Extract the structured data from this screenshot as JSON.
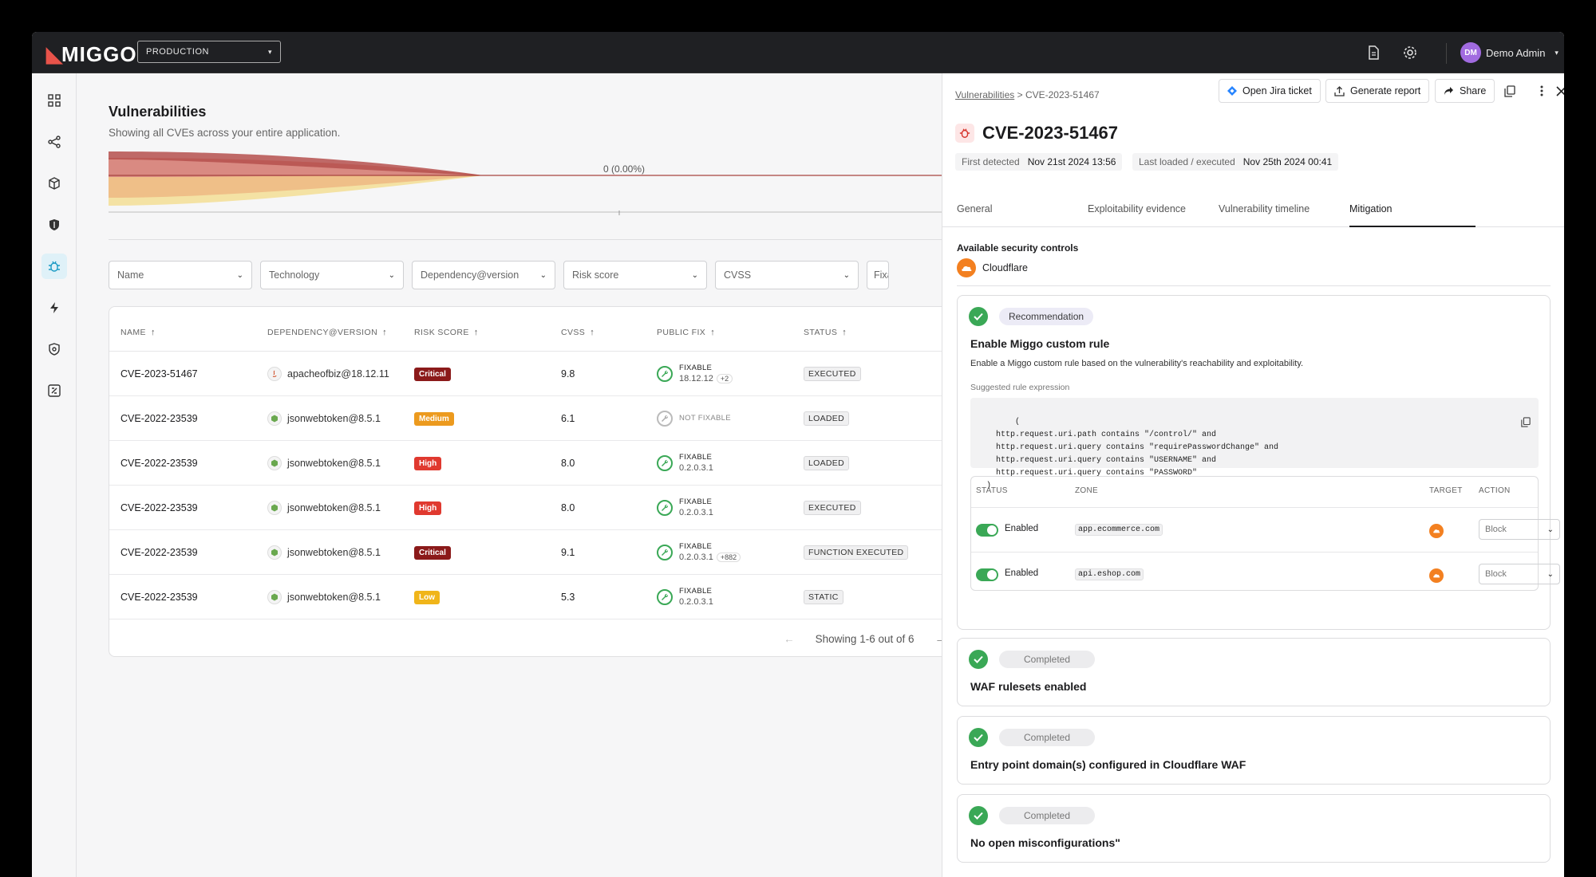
{
  "topbar": {
    "logo": "MIGGO",
    "environment": "PRODUCTION",
    "user_initials": "DM",
    "user_name": "Demo Admin"
  },
  "main": {
    "title": "Vulnerabilities",
    "subtitle": "Showing all CVEs across your entire application.",
    "chart_label": "0 (0.00%)",
    "filters": [
      "Name",
      "Technology",
      "Dependency@version",
      "Risk score",
      "CVSS",
      "Fixa"
    ],
    "columns": [
      "NAME",
      "DEPENDENCY@VERSION",
      "RISK SCORE",
      "CVSS",
      "PUBLIC FIX",
      "STATUS"
    ],
    "rows": [
      {
        "name": "CVE-2023-51467",
        "dependency": "apacheofbiz@18.12.11",
        "risk": "Critical",
        "cvss": "9.8",
        "fix_status": "FIXABLE",
        "fix_version": "18.12.12",
        "fix_more": "+2",
        "status": "EXECUTED"
      },
      {
        "name": "CVE-2022-23539",
        "dependency": "jsonwebtoken@8.5.1",
        "risk": "Medium",
        "cvss": "6.1",
        "fix_status": "NOT FIXABLE",
        "fix_version": "",
        "fix_more": "",
        "status": "LOADED"
      },
      {
        "name": "CVE-2022-23539",
        "dependency": "jsonwebtoken@8.5.1",
        "risk": "High",
        "cvss": "8.0",
        "fix_status": "FIXABLE",
        "fix_version": "0.2.0.3.1",
        "fix_more": "",
        "status": "LOADED"
      },
      {
        "name": "CVE-2022-23539",
        "dependency": "jsonwebtoken@8.5.1",
        "risk": "High",
        "cvss": "8.0",
        "fix_status": "FIXABLE",
        "fix_version": "0.2.0.3.1",
        "fix_more": "",
        "status": "EXECUTED"
      },
      {
        "name": "CVE-2022-23539",
        "dependency": "jsonwebtoken@8.5.1",
        "risk": "Critical",
        "cvss": "9.1",
        "fix_status": "FIXABLE",
        "fix_version": "0.2.0.3.1",
        "fix_more": "+882",
        "status": "FUNCTION EXECUTED"
      },
      {
        "name": "CVE-2022-23539",
        "dependency": "jsonwebtoken@8.5.1",
        "risk": "Low",
        "cvss": "5.3",
        "fix_status": "FIXABLE",
        "fix_version": "0.2.0.3.1",
        "fix_more": "",
        "status": "STATIC"
      }
    ],
    "pager_text": "Showing 1-6 out of 6"
  },
  "risk_colors": {
    "Critical": "#8b1a1a",
    "Medium": "#ec9a1e",
    "High": "#e0392f",
    "Low": "#f0b51a"
  },
  "panel": {
    "breadcrumb_root": "Vulnerabilities",
    "breadcrumb_current": "CVE-2023-51467",
    "btn_jira": "Open Jira ticket",
    "btn_report": "Generate report",
    "btn_share": "Share",
    "cve_id": "CVE-2023-51467",
    "first_detected_label": "First detected",
    "first_detected": "Nov 21st 2024 13:56",
    "last_loaded_label": "Last loaded / executed",
    "last_loaded": "Nov 25th 2024 00:41",
    "tabs": [
      "General",
      "Exploitability evidence",
      "Vulnerability timeline",
      "Mitigation"
    ],
    "active_tab": "Mitigation",
    "available_label": "Available security controls",
    "control_name": "Cloudflare",
    "recommendation": {
      "pill": "Recommendation",
      "title": "Enable Miggo custom rule",
      "description": "Enable a Miggo custom rule based on the vulnerability's reachability and exploitability.",
      "suggested_label": "Suggested rule expression",
      "expression": "(\n    http.request.uri.path contains \"/control/\" and\n    http.request.uri.query contains \"requirePasswordChange\" and\n    http.request.uri.query contains \"USERNAME\" and\n    http.request.uri.query contains \"PASSWORD\"\n  )",
      "rule_columns": [
        "STATUS",
        "ZONE",
        "TARGET",
        "ACTION"
      ],
      "rules": [
        {
          "status": "Enabled",
          "zone": "app.ecommerce.com",
          "action": "Block"
        },
        {
          "status": "Enabled",
          "zone": "api.eshop.com",
          "action": "Block"
        }
      ]
    },
    "completed": [
      {
        "pill": "Completed",
        "title": "WAF rulesets enabled"
      },
      {
        "pill": "Completed",
        "title": "Entry point domain(s) configured in Cloudflare WAF"
      },
      {
        "pill": "Completed",
        "title": "No open misconfigurations\""
      }
    ]
  }
}
